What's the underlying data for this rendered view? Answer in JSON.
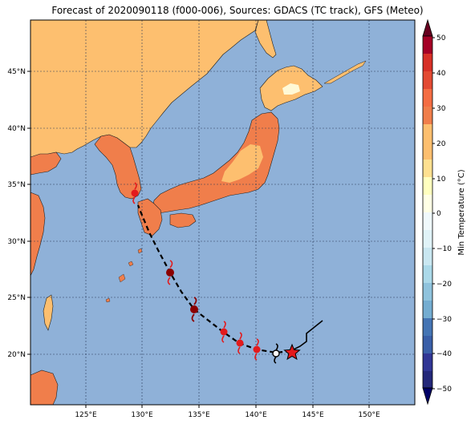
{
  "title": "Forecast of 2020090118 (f000-006), Sources: GDACS (TC track), GFS (Meteo)",
  "map": {
    "lon_ticks": [
      "125°E",
      "130°E",
      "135°E",
      "140°E",
      "145°E",
      "150°E"
    ],
    "lat_ticks": [
      "20°N",
      "25°N",
      "30°N",
      "35°N",
      "40°N",
      "45°N"
    ],
    "colors": {
      "ocean": "#8fb1d8",
      "land_10_20": "#fdbf6f",
      "land_20_30": "#f07e4b",
      "land_30_40": "#d73027",
      "land_0_10": "#fff9d6",
      "track": "#000000",
      "storm_dark": "#8b0000",
      "storm_red": "#e31a1c",
      "current_star": "#e31a1c"
    }
  },
  "colorbar": {
    "label": "Min Temperature (°C)",
    "ticks": [
      "50",
      "40",
      "30",
      "20",
      "10",
      "0",
      "−10",
      "−20",
      "−30",
      "−40",
      "−50"
    ],
    "colors": [
      "#67001f",
      "#a50026",
      "#d73027",
      "#f46d43",
      "#fdae61",
      "#fee090",
      "#ffffbf",
      "#e0f3f8",
      "#abd9e9",
      "#74add1",
      "#4575b4",
      "#313695",
      "#1a1a80"
    ]
  }
}
